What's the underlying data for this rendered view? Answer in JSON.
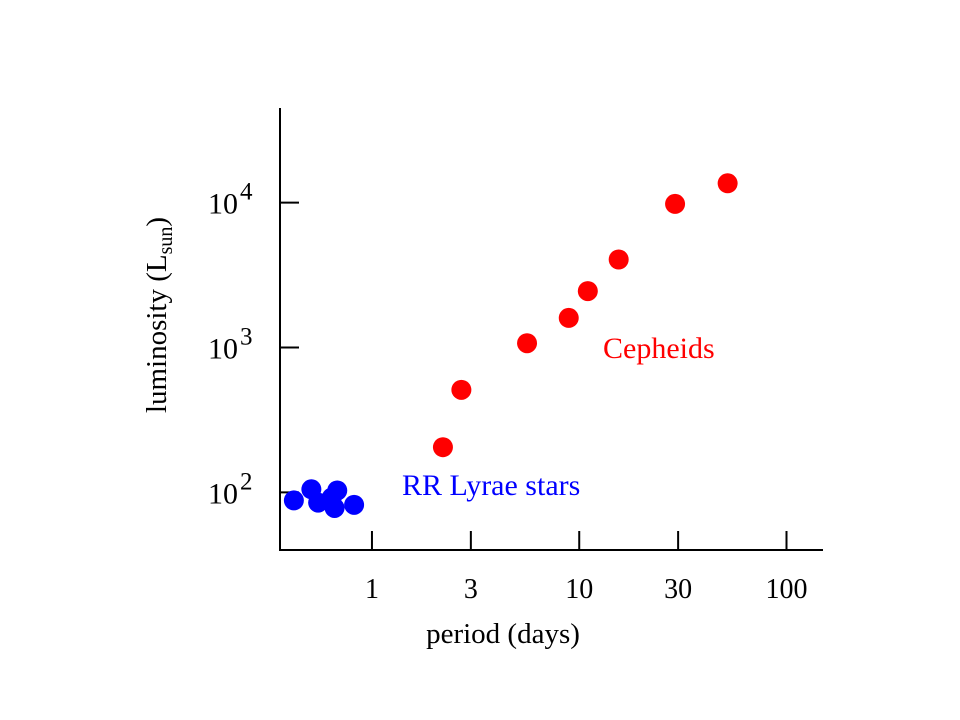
{
  "chart_data": {
    "type": "scatter",
    "x_scale": "log",
    "y_scale": "log",
    "xlabel": "period  (days)",
    "ylabel": {
      "main": "luminosity (L",
      "subscript": "sun",
      "close": ")"
    },
    "xlim": [
      0.36,
      150
    ],
    "ylim": [
      40,
      45000
    ],
    "x_ticks": [
      {
        "value": 1,
        "label": "1"
      },
      {
        "value": 3,
        "label": "3"
      },
      {
        "value": 10,
        "label": "10"
      },
      {
        "value": 30,
        "label": "30"
      },
      {
        "value": 100,
        "label": "100"
      }
    ],
    "y_ticks": [
      {
        "value": 100,
        "base": "10",
        "exponent": "2"
      },
      {
        "value": 1000,
        "base": "10",
        "exponent": "3"
      },
      {
        "value": 10000,
        "base": "10",
        "exponent": "4"
      }
    ],
    "series": [
      {
        "name": "RR Lyrae stars",
        "color": "#0000ff",
        "points": [
          {
            "x": 0.42,
            "y": 88
          },
          {
            "x": 0.51,
            "y": 105
          },
          {
            "x": 0.55,
            "y": 85
          },
          {
            "x": 0.64,
            "y": 92
          },
          {
            "x": 0.68,
            "y": 103
          },
          {
            "x": 0.66,
            "y": 78
          },
          {
            "x": 0.82,
            "y": 82
          }
        ]
      },
      {
        "name": "Cepheids",
        "color": "#ff0000",
        "points": [
          {
            "x": 2.2,
            "y": 205
          },
          {
            "x": 2.7,
            "y": 510
          },
          {
            "x": 5.6,
            "y": 1070
          },
          {
            "x": 8.9,
            "y": 1600
          },
          {
            "x": 11,
            "y": 2450
          },
          {
            "x": 15.5,
            "y": 4050
          },
          {
            "x": 29,
            "y": 9800
          },
          {
            "x": 52,
            "y": 13600
          }
        ]
      }
    ],
    "annotations": [
      {
        "text": "RR Lyrae stars",
        "color": "#0000ff",
        "series": 0
      },
      {
        "text": "Cepheids",
        "color": "#ff0000",
        "series": 1
      }
    ],
    "grid": false,
    "legend": "none"
  }
}
